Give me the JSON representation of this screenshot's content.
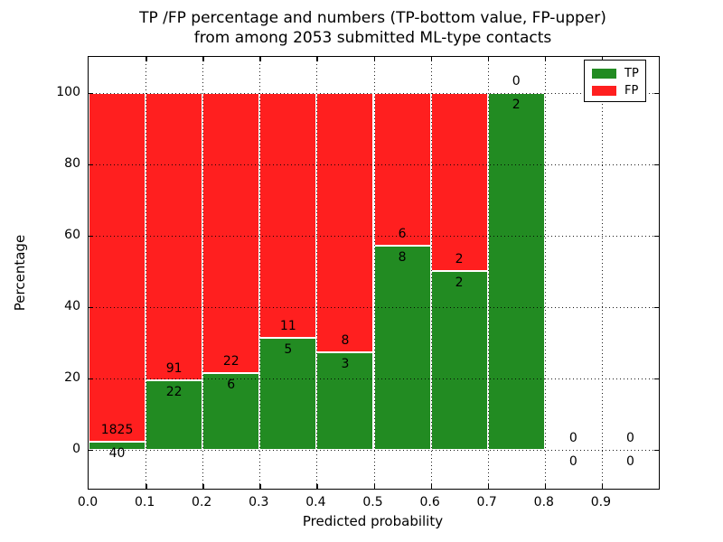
{
  "title": {
    "line1": "TP /FP percentage and numbers (TP-bottom value, FP-upper)",
    "line2": "from among 2053 submitted ML-type contacts"
  },
  "axes": {
    "xlabel": "Predicted probability",
    "ylabel": "Percentage",
    "x_tick_labels": [
      "0.0",
      "0.1",
      "0.2",
      "0.3",
      "0.4",
      "0.5",
      "0.6",
      "0.7",
      "0.8",
      "0.9"
    ],
    "x_tick_values": [
      0.0,
      0.1,
      0.2,
      0.3,
      0.4,
      0.5,
      0.6,
      0.7,
      0.8,
      0.9
    ],
    "y_tick_labels": [
      "0",
      "20",
      "40",
      "60",
      "80",
      "100"
    ],
    "y_tick_values": [
      0,
      20,
      40,
      60,
      80,
      100
    ],
    "grid": true
  },
  "legend": {
    "position": "upper-right",
    "items": [
      {
        "label": "TP",
        "color": "#228b22"
      },
      {
        "label": "FP",
        "color": "#ff1f1f"
      }
    ]
  },
  "colors": {
    "tp_green": "#228b22",
    "fp_red": "#ff1f1f",
    "bar_edge": "#ffffff",
    "axis": "#000000"
  },
  "chart_data": {
    "type": "bar",
    "stacked": true,
    "normalized_to_percent": true,
    "title": "TP /FP percentage and numbers (TP-bottom value, FP-upper) from among 2053 submitted ML-type contacts",
    "xlabel": "Predicted probability",
    "ylabel": "Percentage",
    "xlim": [
      0.0,
      1.0
    ],
    "ylim_displayed": [
      -11,
      110
    ],
    "bin_width": 0.1,
    "bin_start": [
      0.0,
      0.1,
      0.2,
      0.3,
      0.4,
      0.5,
      0.6,
      0.7,
      0.8,
      0.9
    ],
    "series": [
      {
        "name": "TP",
        "color": "#228b22",
        "counts": [
          40,
          22,
          6,
          5,
          3,
          8,
          2,
          2,
          0,
          0
        ]
      },
      {
        "name": "FP",
        "color": "#ff1f1f",
        "counts": [
          1825,
          91,
          22,
          11,
          8,
          6,
          2,
          0,
          0,
          0
        ]
      }
    ],
    "tp_percent_of_bin": [
      2.14,
      19.47,
      21.43,
      31.25,
      27.27,
      57.14,
      50.0,
      100.0,
      0.0,
      0.0
    ],
    "total_contacts": 2053
  }
}
